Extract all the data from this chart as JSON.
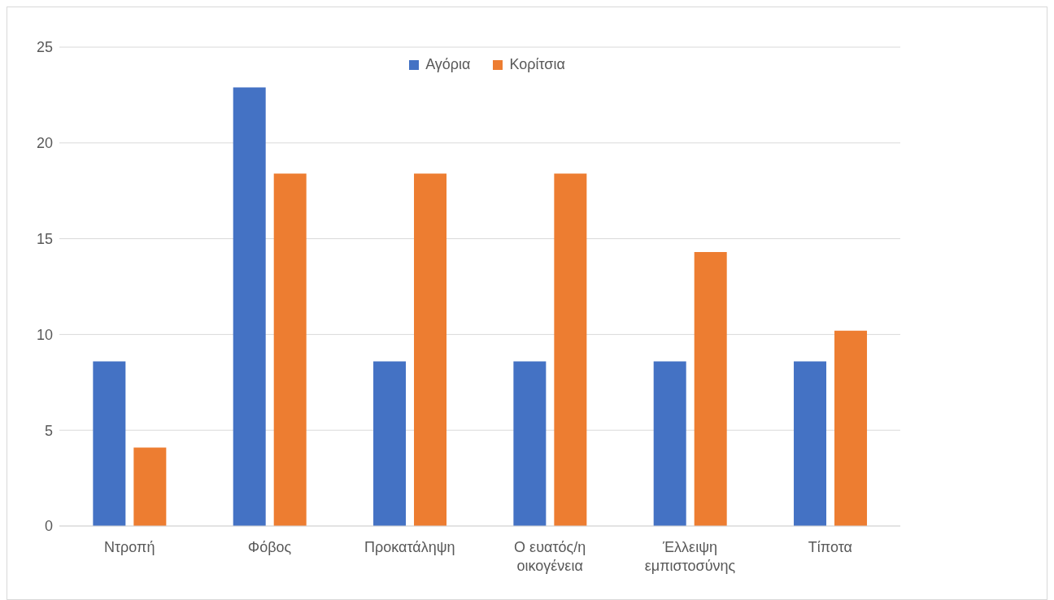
{
  "chart_data": {
    "type": "bar",
    "categories": [
      "Ντροπή",
      "Φόβος",
      "Προκατάληψη",
      "Ο ευατός/η οικογένεια",
      "Έλλειψη εμπιστοσύνης",
      "Τίποτα"
    ],
    "series": [
      {
        "name": "Αγόρια",
        "color": "#4472c4",
        "values": [
          8.6,
          22.9,
          8.6,
          8.6,
          8.6,
          8.6
        ]
      },
      {
        "name": "Κορίτσια",
        "color": "#ed7d31",
        "values": [
          4.1,
          18.4,
          18.4,
          18.4,
          14.3,
          10.2
        ]
      }
    ],
    "ylim": [
      0,
      25
    ],
    "yticks": [
      0,
      5,
      10,
      15,
      20,
      25
    ],
    "grid": "y",
    "legend": "top"
  }
}
